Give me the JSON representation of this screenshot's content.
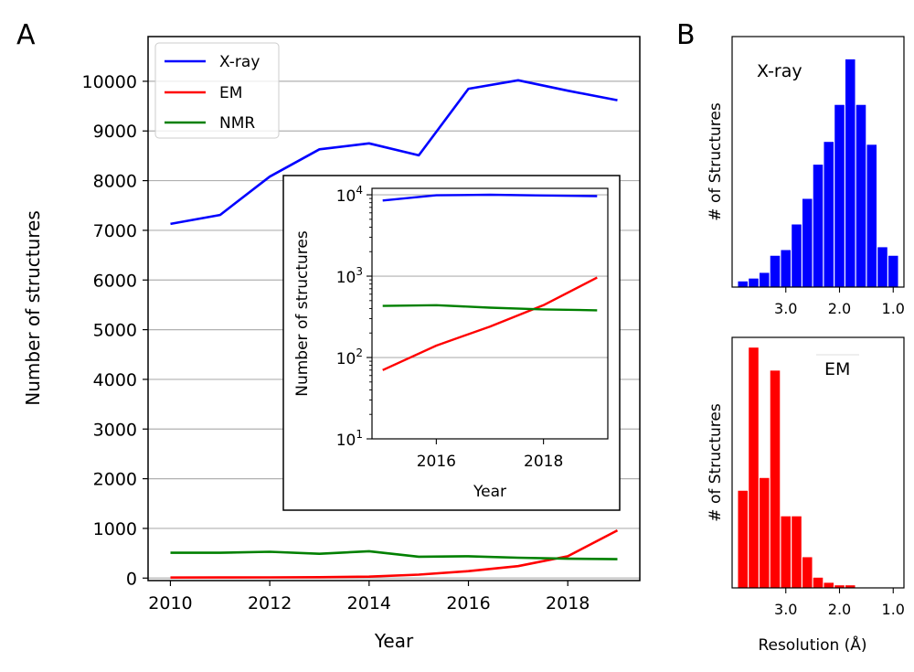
{
  "panel_labels": {
    "a": "A",
    "b": "B"
  },
  "colors": {
    "xray": "#0000ff",
    "em": "#ff0000",
    "nmr": "#008000",
    "grid": "#b0b0b0"
  },
  "chart_data": [
    {
      "id": "main",
      "type": "line",
      "xlabel": "Year",
      "ylabel": "Number of structures",
      "xlim": [
        2009.55,
        2019.45
      ],
      "ylim": [
        -50,
        10900
      ],
      "xticks": [
        "2010",
        "2012",
        "2014",
        "2016",
        "2018"
      ],
      "yticks": [
        "0",
        "1000",
        "2000",
        "3000",
        "4000",
        "5000",
        "6000",
        "7000",
        "8000",
        "9000",
        "10000"
      ],
      "grid": "horizontal",
      "legend_position": "top-left",
      "legend": [
        "X-ray",
        "EM",
        "NMR"
      ],
      "x": [
        2010,
        2011,
        2012,
        2013,
        2014,
        2015,
        2016,
        2017,
        2018,
        2019
      ],
      "series": [
        {
          "name": "X-ray",
          "values": [
            7130,
            7310,
            8080,
            8630,
            8750,
            8510,
            9850,
            10020,
            9810,
            9620
          ]
        },
        {
          "name": "EM",
          "values": [
            10,
            12,
            15,
            18,
            30,
            70,
            140,
            240,
            440,
            960
          ]
        },
        {
          "name": "NMR",
          "values": [
            510,
            510,
            530,
            490,
            540,
            430,
            440,
            410,
            390,
            380
          ]
        }
      ]
    },
    {
      "id": "inset",
      "type": "line",
      "scale": "log",
      "xlabel": "Year",
      "ylabel": "Number of structures",
      "xlim": [
        2014.8,
        2019.2
      ],
      "ylim": [
        10,
        12000
      ],
      "xticks": [
        "2016",
        "2018"
      ],
      "yticks": [
        {
          "base": "10",
          "exp": "1"
        },
        {
          "base": "10",
          "exp": "2"
        },
        {
          "base": "10",
          "exp": "3"
        },
        {
          "base": "10",
          "exp": "4"
        }
      ],
      "grid": "horizontal",
      "x": [
        2015,
        2016,
        2017,
        2018,
        2019
      ],
      "series": [
        {
          "name": "X-ray",
          "values": [
            8510,
            9850,
            10020,
            9810,
            9620
          ]
        },
        {
          "name": "EM",
          "values": [
            70,
            140,
            240,
            440,
            960
          ]
        },
        {
          "name": "NMR",
          "values": [
            430,
            440,
            410,
            390,
            380
          ]
        }
      ]
    },
    {
      "id": "hist-xray",
      "type": "bar",
      "label": "X-ray",
      "ylabel": "# of Structures",
      "x_reversed": true,
      "xlim": [
        4.0,
        0.8
      ],
      "xticks": [
        "3.0",
        "2.0",
        "1.0"
      ],
      "bin_width": 0.2,
      "bins": [
        3.8,
        3.6,
        3.4,
        3.2,
        3.0,
        2.8,
        2.6,
        2.4,
        2.2,
        2.0,
        1.8,
        1.6,
        1.4,
        1.2,
        1.0
      ],
      "values": [
        2,
        3,
        5,
        11,
        13,
        22,
        31,
        43,
        51,
        64,
        80,
        64,
        50,
        14,
        11
      ],
      "ylim": [
        0,
        88
      ]
    },
    {
      "id": "hist-em",
      "type": "bar",
      "label": "EM",
      "ylabel": "# of Structures",
      "xlabel": "Resolution (Å)",
      "x_reversed": true,
      "xlim": [
        4.0,
        0.8
      ],
      "xticks": [
        "3.0",
        "2.0",
        "1.0"
      ],
      "bin_width": 0.2,
      "bins": [
        3.8,
        3.6,
        3.4,
        3.2,
        3.0,
        2.8,
        2.6,
        2.4,
        2.2,
        2.0,
        1.8
      ],
      "values": [
        38,
        94,
        43,
        85,
        28,
        28,
        12,
        4,
        2,
        1,
        1
      ],
      "ylim": [
        0,
        98
      ]
    }
  ]
}
